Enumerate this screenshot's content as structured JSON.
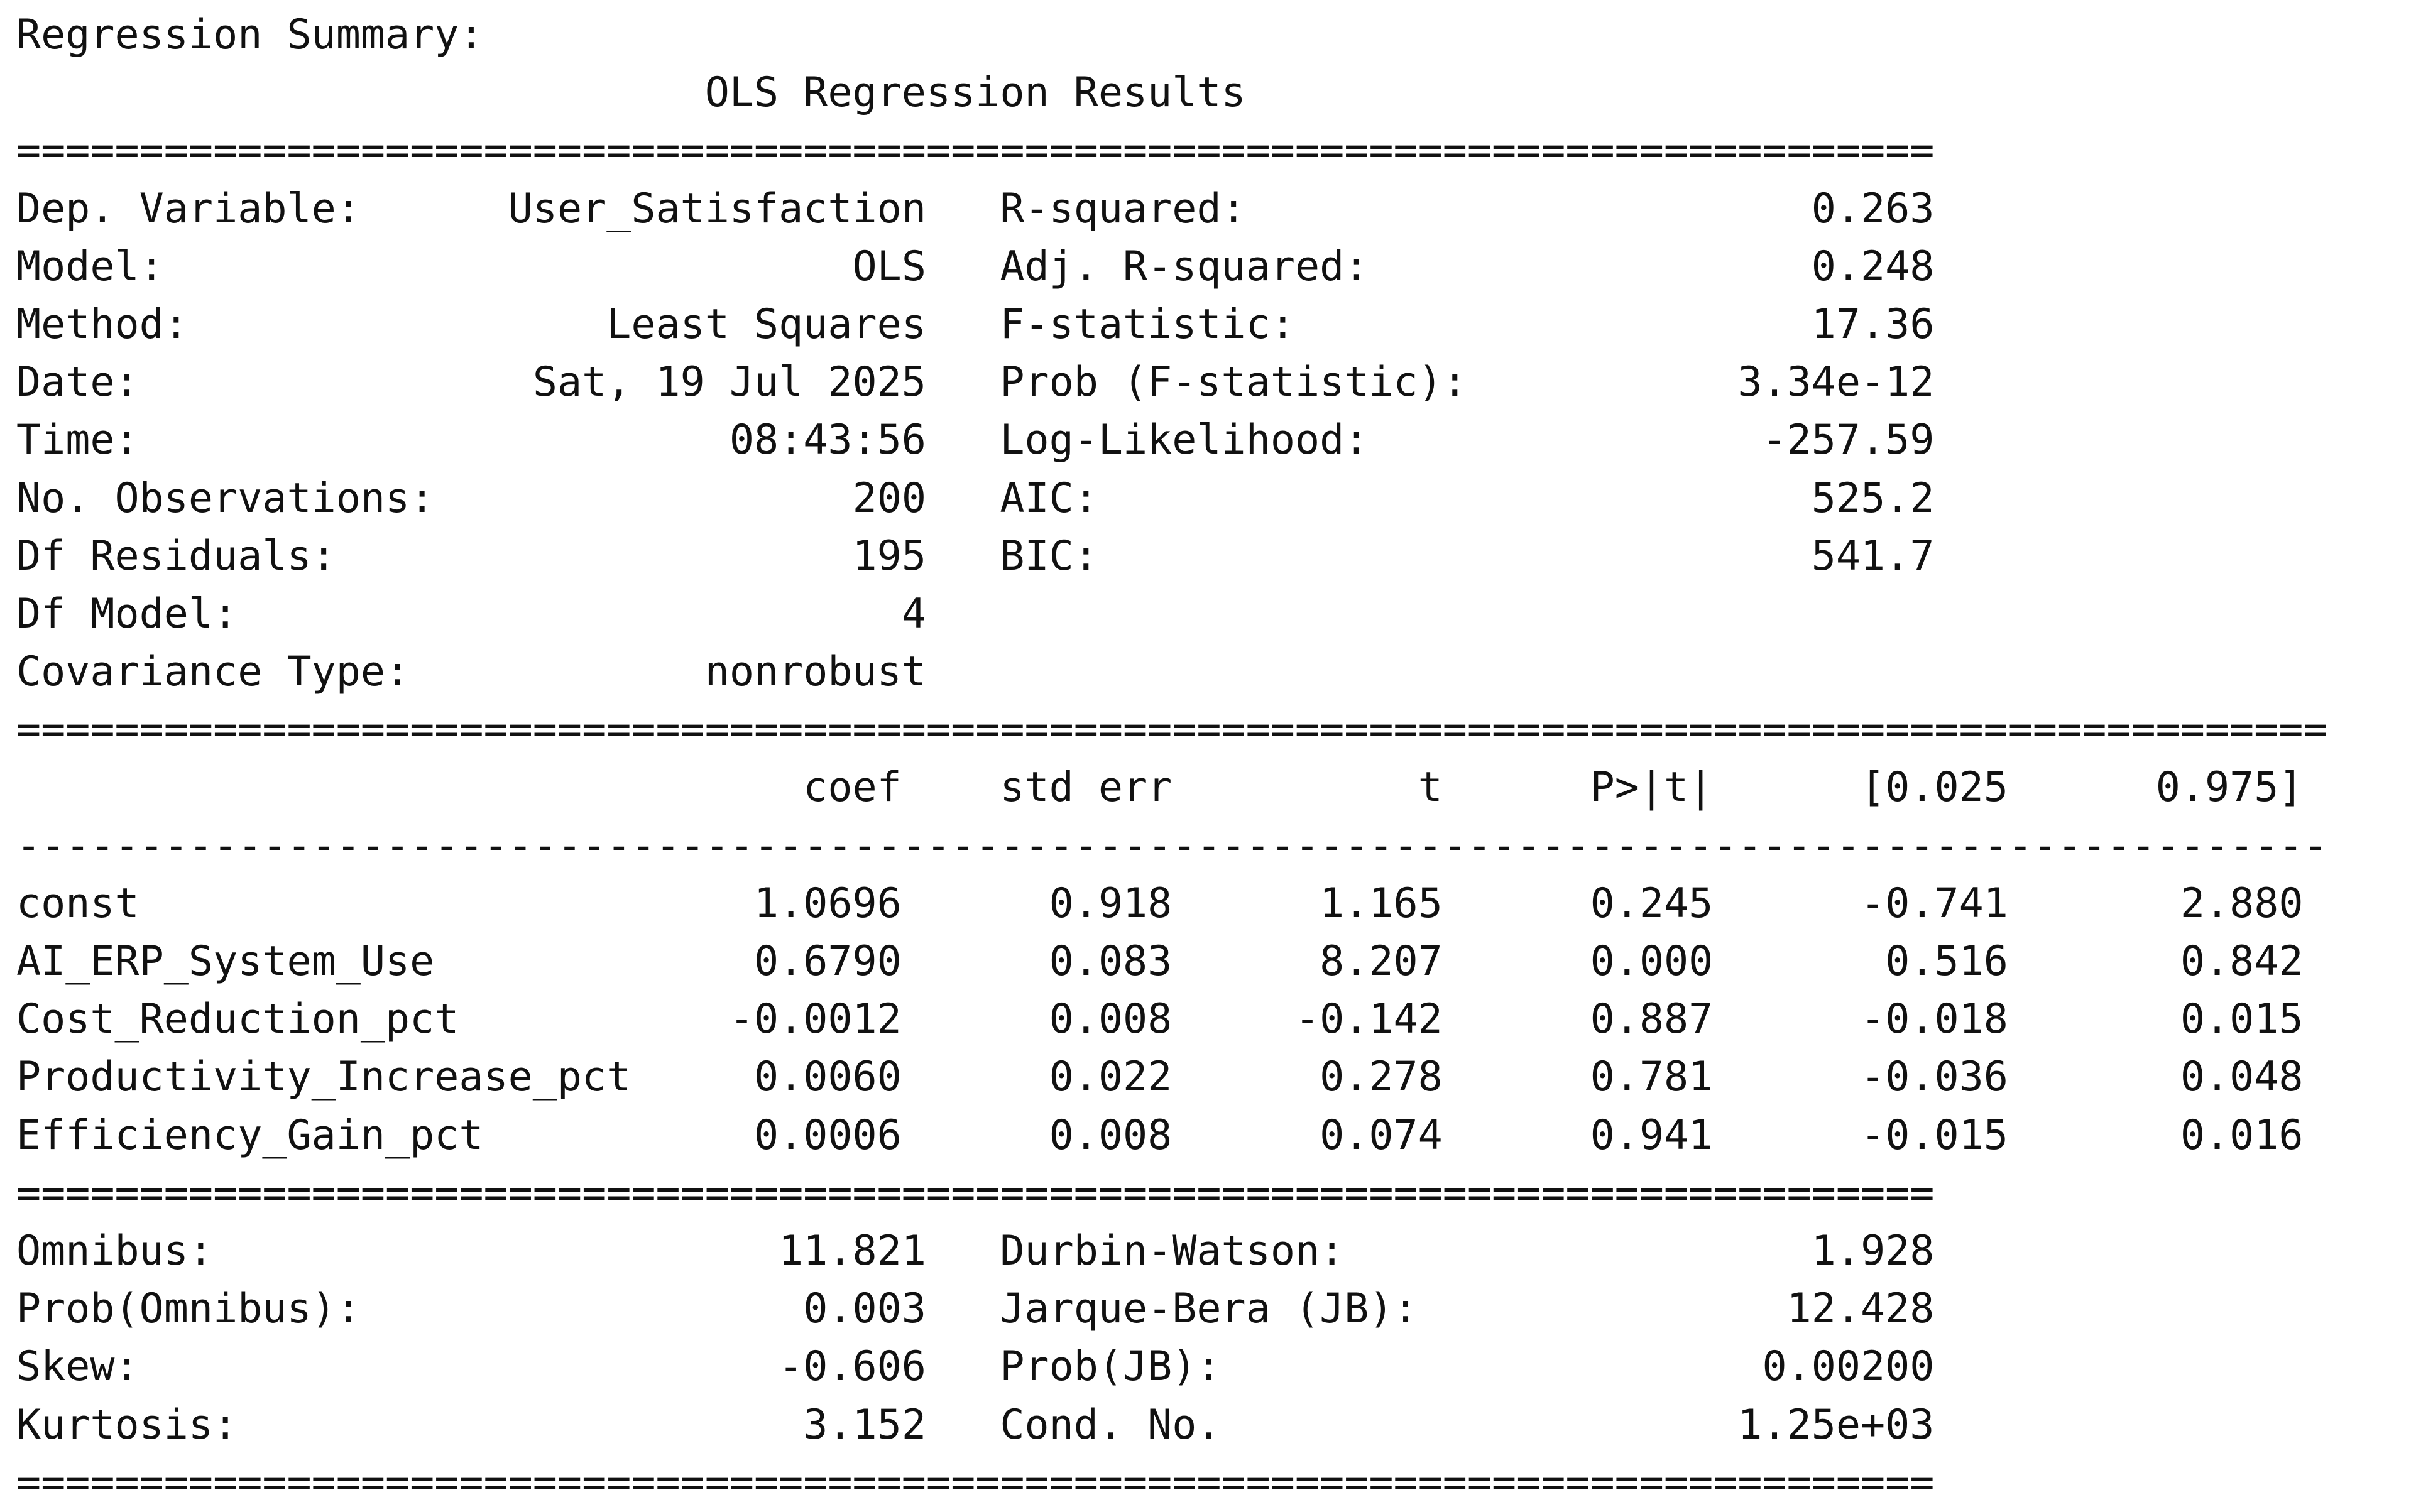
{
  "header": {
    "summary_label": "Regression Summary:",
    "results_title": "OLS Regression Results"
  },
  "model_info": {
    "left": [
      {
        "label": "Dep. Variable:",
        "value": "User_Satisfaction"
      },
      {
        "label": "Model:",
        "value": "OLS"
      },
      {
        "label": "Method:",
        "value": "Least Squares"
      },
      {
        "label": "Date:",
        "value": "Sat, 19 Jul 2025"
      },
      {
        "label": "Time:",
        "value": "08:43:56"
      },
      {
        "label": "No. Observations:",
        "value": "200"
      },
      {
        "label": "Df Residuals:",
        "value": "195"
      },
      {
        "label": "Df Model:",
        "value": "4"
      },
      {
        "label": "Covariance Type:",
        "value": "nonrobust"
      }
    ],
    "right": [
      {
        "label": "R-squared:",
        "value": "0.263"
      },
      {
        "label": "Adj. R-squared:",
        "value": "0.248"
      },
      {
        "label": "F-statistic:",
        "value": "17.36"
      },
      {
        "label": "Prob (F-statistic):",
        "value": "3.34e-12"
      },
      {
        "label": "Log-Likelihood:",
        "value": "-257.59"
      },
      {
        "label": "AIC:",
        "value": "525.2"
      },
      {
        "label": "BIC:",
        "value": "541.7"
      }
    ]
  },
  "coefficients": {
    "columns": [
      "coef",
      "std err",
      "t",
      "P>|t|",
      "[0.025",
      "0.975]"
    ],
    "rows": [
      {
        "name": "const",
        "values": [
          "1.0696",
          "0.918",
          "1.165",
          "0.245",
          "-0.741",
          "2.880"
        ]
      },
      {
        "name": "AI_ERP_System_Use",
        "values": [
          "0.6790",
          "0.083",
          "8.207",
          "0.000",
          "0.516",
          "0.842"
        ]
      },
      {
        "name": "Cost_Reduction_pct",
        "values": [
          "-0.0012",
          "0.008",
          "-0.142",
          "0.887",
          "-0.018",
          "0.015"
        ]
      },
      {
        "name": "Productivity_Increase_pct",
        "values": [
          "0.0060",
          "0.022",
          "0.278",
          "0.781",
          "-0.036",
          "0.048"
        ]
      },
      {
        "name": "Efficiency_Gain_pct",
        "values": [
          "0.0006",
          "0.008",
          "0.074",
          "0.941",
          "-0.015",
          "0.016"
        ]
      }
    ]
  },
  "diagnostics": {
    "left": [
      {
        "label": "Omnibus:",
        "value": "11.821"
      },
      {
        "label": "Prob(Omnibus):",
        "value": "0.003"
      },
      {
        "label": "Skew:",
        "value": "-0.606"
      },
      {
        "label": "Kurtosis:",
        "value": "3.152"
      }
    ],
    "right": [
      {
        "label": "Durbin-Watson:",
        "value": "1.928"
      },
      {
        "label": "Jarque-Bera (JB):",
        "value": "12.428"
      },
      {
        "label": "Prob(JB):",
        "value": "0.00200"
      },
      {
        "label": "Cond. No.",
        "value": "1.25e+03"
      }
    ]
  },
  "separators": {
    "double": "=",
    "single": "-"
  }
}
